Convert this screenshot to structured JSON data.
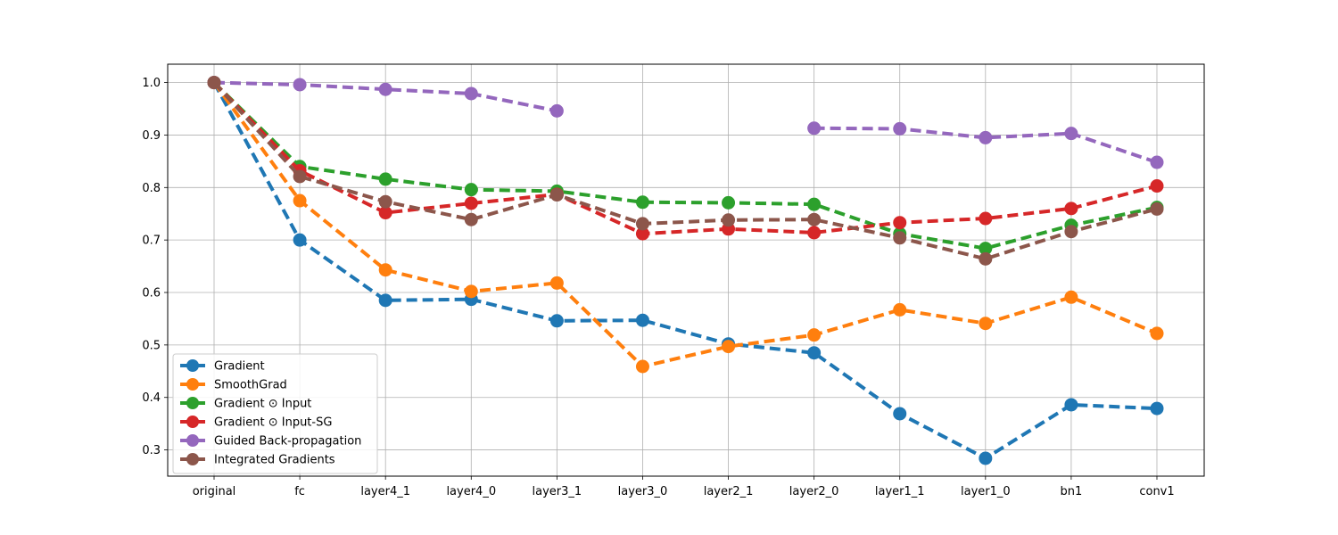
{
  "chart_data": {
    "type": "line",
    "title": "",
    "xlabel": "",
    "ylabel": "",
    "categories": [
      "original",
      "fc",
      "layer4_1",
      "layer4_0",
      "layer3_1",
      "layer3_0",
      "layer2_1",
      "layer2_0",
      "layer1_1",
      "layer1_0",
      "bn1",
      "conv1"
    ],
    "ylim": [
      0.25,
      1.035
    ],
    "yticks": [
      "0.3",
      "0.4",
      "0.5",
      "0.6",
      "0.7",
      "0.8",
      "0.9",
      "1.0"
    ],
    "grid": true,
    "legend_position": "lower-left",
    "line_style": "dashed",
    "marker": "circle",
    "series": [
      {
        "name": "Gradient",
        "color": "#1f77b4",
        "values": [
          1.0,
          0.7,
          0.585,
          0.587,
          0.546,
          0.547,
          0.502,
          0.485,
          0.369,
          0.284,
          0.386,
          0.379
        ]
      },
      {
        "name": "SmoothGrad",
        "color": "#ff7f0e",
        "values": [
          1.0,
          0.775,
          0.643,
          0.602,
          0.618,
          0.459,
          0.497,
          0.519,
          0.567,
          0.541,
          0.591,
          0.522
        ]
      },
      {
        "name": "Gradient ⊙ Input",
        "color": "#2ca02c",
        "values": [
          1.0,
          0.84,
          0.816,
          0.796,
          0.793,
          0.772,
          0.771,
          0.768,
          0.712,
          0.684,
          0.728,
          0.762
        ]
      },
      {
        "name": "Gradient ⊙ Input-SG",
        "color": "#d62728",
        "values": [
          1.0,
          0.832,
          0.752,
          0.77,
          0.787,
          0.712,
          0.721,
          0.714,
          0.733,
          0.741,
          0.76,
          0.803
        ]
      },
      {
        "name": "Guided Back-propagation",
        "color": "#9467bd",
        "values": [
          1.0,
          0.996,
          0.987,
          0.979,
          0.946,
          null,
          null,
          0.913,
          0.912,
          0.895,
          0.903,
          0.848
        ]
      },
      {
        "name": "Integrated Gradients",
        "color": "#8c564b",
        "values": [
          1.0,
          0.821,
          0.773,
          0.739,
          0.786,
          0.731,
          0.738,
          0.739,
          0.704,
          0.664,
          0.716,
          0.759
        ]
      }
    ]
  }
}
